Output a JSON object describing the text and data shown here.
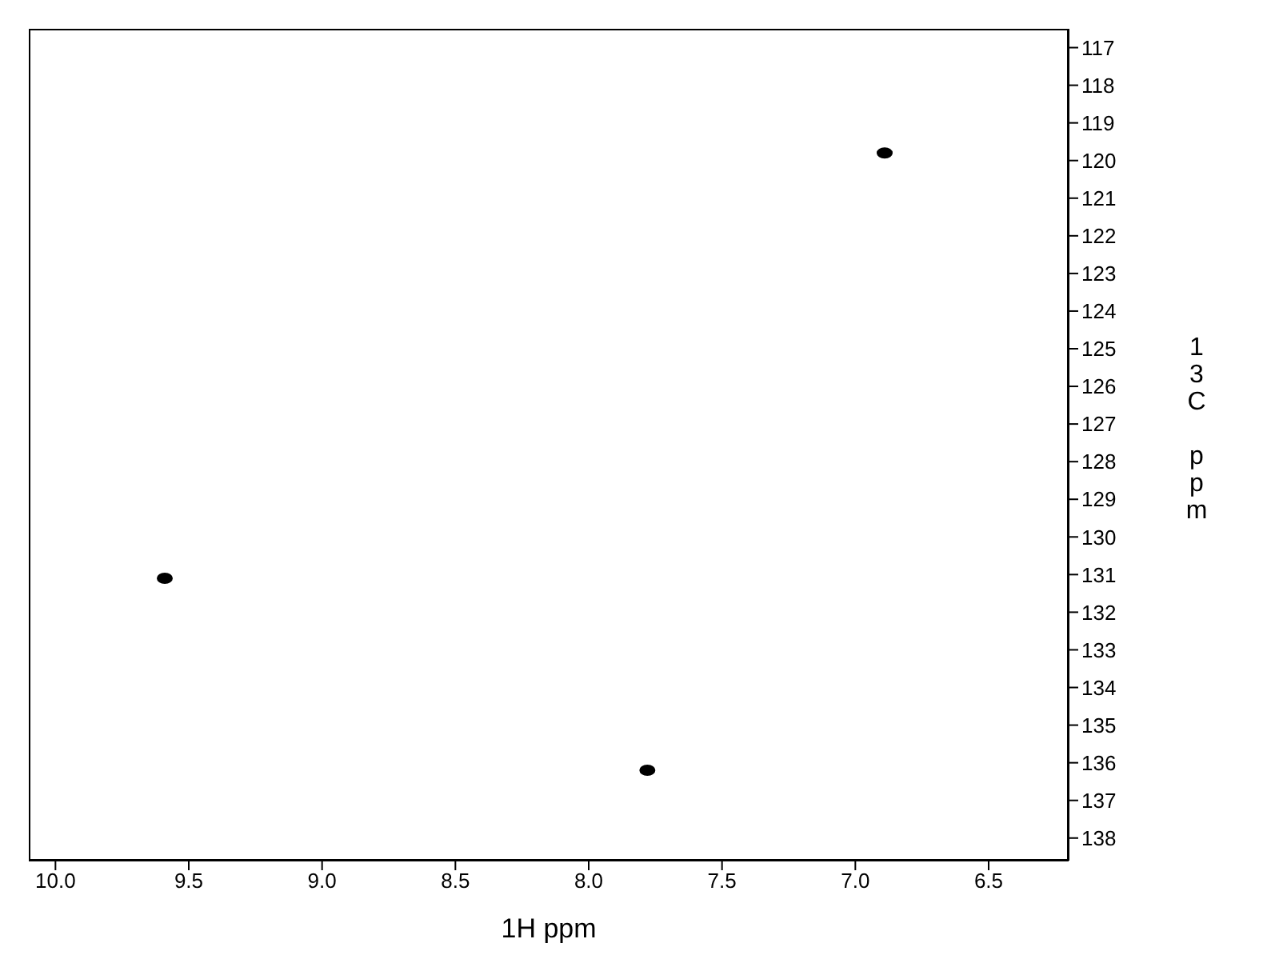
{
  "chart_data": {
    "type": "scatter",
    "xlabel": "1H ppm",
    "ylabel": "13C ppm",
    "x": [
      9.59,
      7.78,
      6.89
    ],
    "series": [
      {
        "color": "#000000",
        "values": [
          131.1,
          136.2,
          119.8
        ]
      }
    ],
    "marker": "circle",
    "xlim": [
      10.1,
      6.2
    ],
    "xticks": [
      {
        "value": 10,
        "label": "10.0"
      },
      9.5,
      {
        "value": 9,
        "label": "9.0"
      },
      8.5,
      {
        "value": 8,
        "label": "8.0"
      },
      7.5,
      {
        "value": 7,
        "label": "7.0"
      },
      6.5
    ],
    "ylim": [
      138.6,
      116.5
    ],
    "yticks": [
      117,
      118,
      119,
      120,
      121,
      122,
      123,
      124,
      125,
      126,
      127,
      128,
      129,
      130,
      131,
      132,
      133,
      134,
      135,
      136,
      137,
      138
    ],
    "grid": false,
    "legend": false
  }
}
